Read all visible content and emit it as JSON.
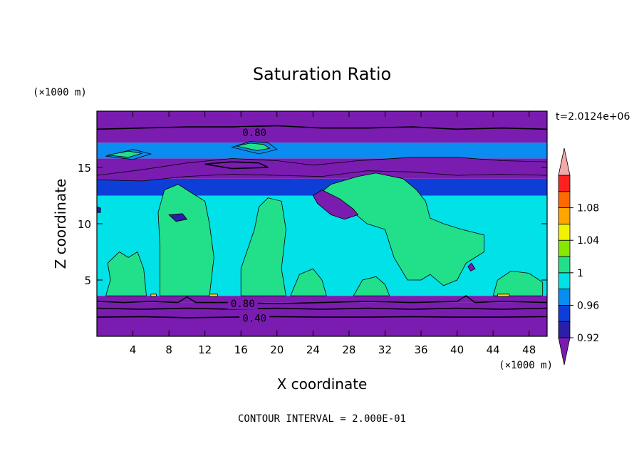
{
  "chart_data": {
    "type": "heatmap",
    "title": "Saturation Ratio",
    "xlabel": "X coordinate",
    "ylabel": "Z coordinate",
    "x_unit": "(×1000 m)",
    "y_unit": "(×1000 m)",
    "time_label": "t=2.0124e+06",
    "contour_interval_label": "CONTOUR INTERVAL = 2.000E-01",
    "xlim": [
      0,
      50
    ],
    "ylim": [
      0,
      20
    ],
    "x_ticks": [
      4,
      8,
      12,
      16,
      20,
      24,
      28,
      32,
      36,
      40,
      44,
      48
    ],
    "y_ticks": [
      5,
      10,
      15
    ],
    "contour_labels": [
      {
        "text": "0.80",
        "x": 17.5,
        "y": 18.1
      },
      {
        "text": "0.80",
        "x": 16.2,
        "y": 2.9
      },
      {
        "text": "0.40",
        "x": 17.5,
        "y": 1.6
      }
    ],
    "colorbar": {
      "levels": [
        0.92,
        0.94,
        0.96,
        0.98,
        1.0,
        1.02,
        1.04,
        1.06,
        1.08,
        1.1
      ],
      "tick_labels": [
        {
          "value": 0.92,
          "text": "0.92"
        },
        {
          "value": 0.96,
          "text": "0.96"
        },
        {
          "value": 1.0,
          "text": "1"
        },
        {
          "value": 1.04,
          "text": "1.04"
        },
        {
          "value": 1.08,
          "text": "1.08"
        }
      ],
      "colors": [
        "#7a1cb0",
        "#2a1fa8",
        "#0d3fd8",
        "#0a8cf0",
        "#00e1e8",
        "#22e08a",
        "#86e800",
        "#f2f200",
        "#ffa500",
        "#ff6a00",
        "#ff2020",
        "#f4a8a8"
      ]
    },
    "bands": [
      {
        "z0": 0.0,
        "z1": 3.0,
        "value": 0.4
      },
      {
        "z0": 3.0,
        "z1": 3.6,
        "value": 0.86
      },
      {
        "z0": 3.6,
        "z1": 12.5,
        "value": 0.99
      },
      {
        "z0": 12.5,
        "z1": 14.0,
        "value": 0.95
      },
      {
        "z0": 14.0,
        "z1": 15.8,
        "value": 0.9
      },
      {
        "z0": 15.8,
        "z1": 17.2,
        "value": 0.97
      },
      {
        "z0": 17.2,
        "z1": 20.0,
        "value": 0.6
      }
    ],
    "regions": [
      {
        "value": 1.01,
        "points": [
          [
            7,
            3.6
          ],
          [
            7,
            8
          ],
          [
            6.8,
            11
          ],
          [
            7.5,
            13
          ],
          [
            9,
            13.5
          ],
          [
            10,
            13
          ],
          [
            11,
            12.5
          ],
          [
            12,
            12
          ],
          [
            12.5,
            10
          ],
          [
            13,
            7
          ],
          [
            12.5,
            3.6
          ]
        ]
      },
      {
        "value": 1.01,
        "points": [
          [
            16,
            3.6
          ],
          [
            16,
            6
          ],
          [
            17.5,
            9.5
          ],
          [
            18,
            11.5
          ],
          [
            19,
            12.3
          ],
          [
            20.5,
            12
          ],
          [
            21,
            9.5
          ],
          [
            20.5,
            6
          ],
          [
            21,
            3.6
          ]
        ]
      },
      {
        "value": 1.01,
        "points": [
          [
            24.5,
            12.5
          ],
          [
            26,
            13.5
          ],
          [
            29,
            14.2
          ],
          [
            31,
            14.5
          ],
          [
            34,
            14
          ],
          [
            35.5,
            13
          ],
          [
            36.5,
            12
          ],
          [
            37,
            10.5
          ],
          [
            38.5,
            10
          ],
          [
            40.5,
            9.5
          ],
          [
            43,
            9
          ],
          [
            43,
            7.5
          ],
          [
            41,
            6.5
          ],
          [
            40,
            5
          ],
          [
            38.5,
            4.5
          ],
          [
            37,
            5.5
          ],
          [
            36,
            5
          ],
          [
            34.5,
            5
          ],
          [
            33,
            7
          ],
          [
            32,
            9.5
          ],
          [
            30,
            10
          ],
          [
            28.5,
            11
          ],
          [
            27,
            11.3
          ],
          [
            25.5,
            12
          ]
        ]
      },
      {
        "value": 1.01,
        "points": [
          [
            1,
            3.6
          ],
          [
            1.5,
            5
          ],
          [
            1.2,
            6.5
          ],
          [
            2.5,
            7.5
          ],
          [
            3.5,
            7
          ],
          [
            4.5,
            7.5
          ],
          [
            5.2,
            6
          ],
          [
            5.5,
            3.6
          ]
        ]
      },
      {
        "value": 1.01,
        "points": [
          [
            21.5,
            3.6
          ],
          [
            22.5,
            5.5
          ],
          [
            24,
            6
          ],
          [
            25,
            5
          ],
          [
            25.5,
            3.6
          ]
        ]
      },
      {
        "value": 1.01,
        "points": [
          [
            28.5,
            3.6
          ],
          [
            29.5,
            5
          ],
          [
            31,
            5.3
          ],
          [
            32,
            4.6
          ],
          [
            32.5,
            3.6
          ]
        ]
      },
      {
        "value": 1.01,
        "points": [
          [
            44,
            3.6
          ],
          [
            44.5,
            5
          ],
          [
            46,
            5.8
          ],
          [
            48,
            5.6
          ],
          [
            49.5,
            4.8
          ],
          [
            49.5,
            3.6
          ]
        ]
      },
      {
        "value": 1.05,
        "points": [
          [
            6,
            3.55
          ],
          [
            6.6,
            3.55
          ],
          [
            6.6,
            3.75
          ],
          [
            6,
            3.75
          ]
        ]
      },
      {
        "value": 1.05,
        "points": [
          [
            12.5,
            3.55
          ],
          [
            13.4,
            3.55
          ],
          [
            13.4,
            3.75
          ],
          [
            12.5,
            3.75
          ]
        ]
      },
      {
        "value": 1.05,
        "points": [
          [
            44.5,
            3.55
          ],
          [
            45.8,
            3.55
          ],
          [
            45.8,
            3.75
          ],
          [
            44.5,
            3.75
          ]
        ]
      },
      {
        "value": 0.91,
        "points": [
          [
            0,
            14.3
          ],
          [
            5,
            14.8
          ],
          [
            10,
            15.4
          ],
          [
            15,
            15.8
          ],
          [
            20,
            15.6
          ],
          [
            24,
            15.2
          ],
          [
            29,
            15.6
          ],
          [
            35,
            15.9
          ],
          [
            40,
            15.9
          ],
          [
            45,
            15.6
          ],
          [
            50,
            15.5
          ],
          [
            50,
            14.3
          ],
          [
            45,
            14.4
          ],
          [
            40,
            14.3
          ],
          [
            35,
            14.6
          ],
          [
            30,
            14.7
          ],
          [
            25,
            14.2
          ],
          [
            20,
            14.3
          ],
          [
            15,
            14.4
          ],
          [
            10,
            14.2
          ],
          [
            5,
            13.8
          ],
          [
            0,
            13.9
          ]
        ]
      },
      {
        "value": 0.97,
        "points": [
          [
            1,
            16
          ],
          [
            4,
            16.6
          ],
          [
            6,
            16.2
          ],
          [
            4,
            15.7
          ]
        ]
      },
      {
        "value": 1.01,
        "points": [
          [
            1.2,
            16.1
          ],
          [
            3.5,
            16.45
          ],
          [
            5,
            16.25
          ],
          [
            3.5,
            15.9
          ]
        ]
      },
      {
        "value": 0.97,
        "points": [
          [
            15,
            16.8
          ],
          [
            17,
            17.3
          ],
          [
            19,
            17.2
          ],
          [
            20,
            16.6
          ],
          [
            18,
            16.2
          ]
        ]
      },
      {
        "value": 1.01,
        "points": [
          [
            15.5,
            16.9
          ],
          [
            17,
            17.15
          ],
          [
            18.5,
            17.05
          ],
          [
            19.2,
            16.7
          ],
          [
            17.8,
            16.5
          ]
        ]
      },
      {
        "value": 0.91,
        "points": [
          [
            24,
            12.5
          ],
          [
            25,
            13
          ],
          [
            27,
            12.2
          ],
          [
            28.5,
            11.3
          ],
          [
            29,
            10.8
          ],
          [
            27.5,
            10.4
          ],
          [
            26,
            10.8
          ],
          [
            24.5,
            11.8
          ]
        ]
      },
      {
        "value": 0.93,
        "points": [
          [
            8,
            10.8
          ],
          [
            9.5,
            10.9
          ],
          [
            10,
            10.4
          ],
          [
            8.8,
            10.2
          ]
        ]
      },
      {
        "value": 0.91,
        "points": [
          [
            41.2,
            6.2
          ],
          [
            41.6,
            6.5
          ],
          [
            42,
            6
          ],
          [
            41.5,
            5.8
          ]
        ]
      },
      {
        "value": 0.93,
        "points": [
          [
            0,
            11.5
          ],
          [
            0.4,
            11.4
          ],
          [
            0.4,
            11
          ],
          [
            0,
            11
          ]
        ]
      }
    ],
    "contours": [
      {
        "value": 0.8,
        "points": [
          [
            0,
            18.4
          ],
          [
            5,
            18.5
          ],
          [
            10,
            18.6
          ],
          [
            15,
            18.6
          ],
          [
            20,
            18.7
          ],
          [
            25,
            18.5
          ],
          [
            30,
            18.5
          ],
          [
            35,
            18.6
          ],
          [
            40,
            18.4
          ],
          [
            45,
            18.5
          ],
          [
            50,
            18.4
          ]
        ]
      },
      {
        "value": 0.8,
        "points": [
          [
            0,
            3.1
          ],
          [
            3,
            3.0
          ],
          [
            6,
            3.1
          ],
          [
            9,
            3.0
          ],
          [
            10,
            3.5
          ],
          [
            11,
            3.0
          ],
          [
            15,
            3.0
          ],
          [
            20,
            2.9
          ],
          [
            25,
            3.0
          ],
          [
            30,
            3.1
          ],
          [
            35,
            3.0
          ],
          [
            40,
            3.1
          ],
          [
            41,
            3.6
          ],
          [
            42,
            3.0
          ],
          [
            45,
            3.1
          ],
          [
            50,
            3.0
          ]
        ]
      },
      {
        "value": 0.6,
        "points": [
          [
            0,
            2.5
          ],
          [
            5,
            2.4
          ],
          [
            10,
            2.5
          ],
          [
            15,
            2.4
          ],
          [
            20,
            2.5
          ],
          [
            25,
            2.4
          ],
          [
            30,
            2.5
          ],
          [
            35,
            2.4
          ],
          [
            40,
            2.5
          ],
          [
            45,
            2.4
          ],
          [
            50,
            2.5
          ]
        ]
      },
      {
        "value": 0.4,
        "points": [
          [
            0,
            1.7
          ],
          [
            5,
            1.75
          ],
          [
            10,
            1.65
          ],
          [
            15,
            1.7
          ],
          [
            20,
            1.75
          ],
          [
            25,
            1.7
          ],
          [
            30,
            1.7
          ],
          [
            35,
            1.75
          ],
          [
            40,
            1.7
          ],
          [
            45,
            1.7
          ],
          [
            50,
            1.75
          ]
        ]
      },
      {
        "value": 0.6,
        "points": [
          [
            12,
            15.3
          ],
          [
            15,
            15.5
          ],
          [
            18,
            15.4
          ],
          [
            19,
            15.0
          ],
          [
            15,
            14.9
          ],
          [
            12,
            15.3
          ]
        ]
      }
    ]
  }
}
